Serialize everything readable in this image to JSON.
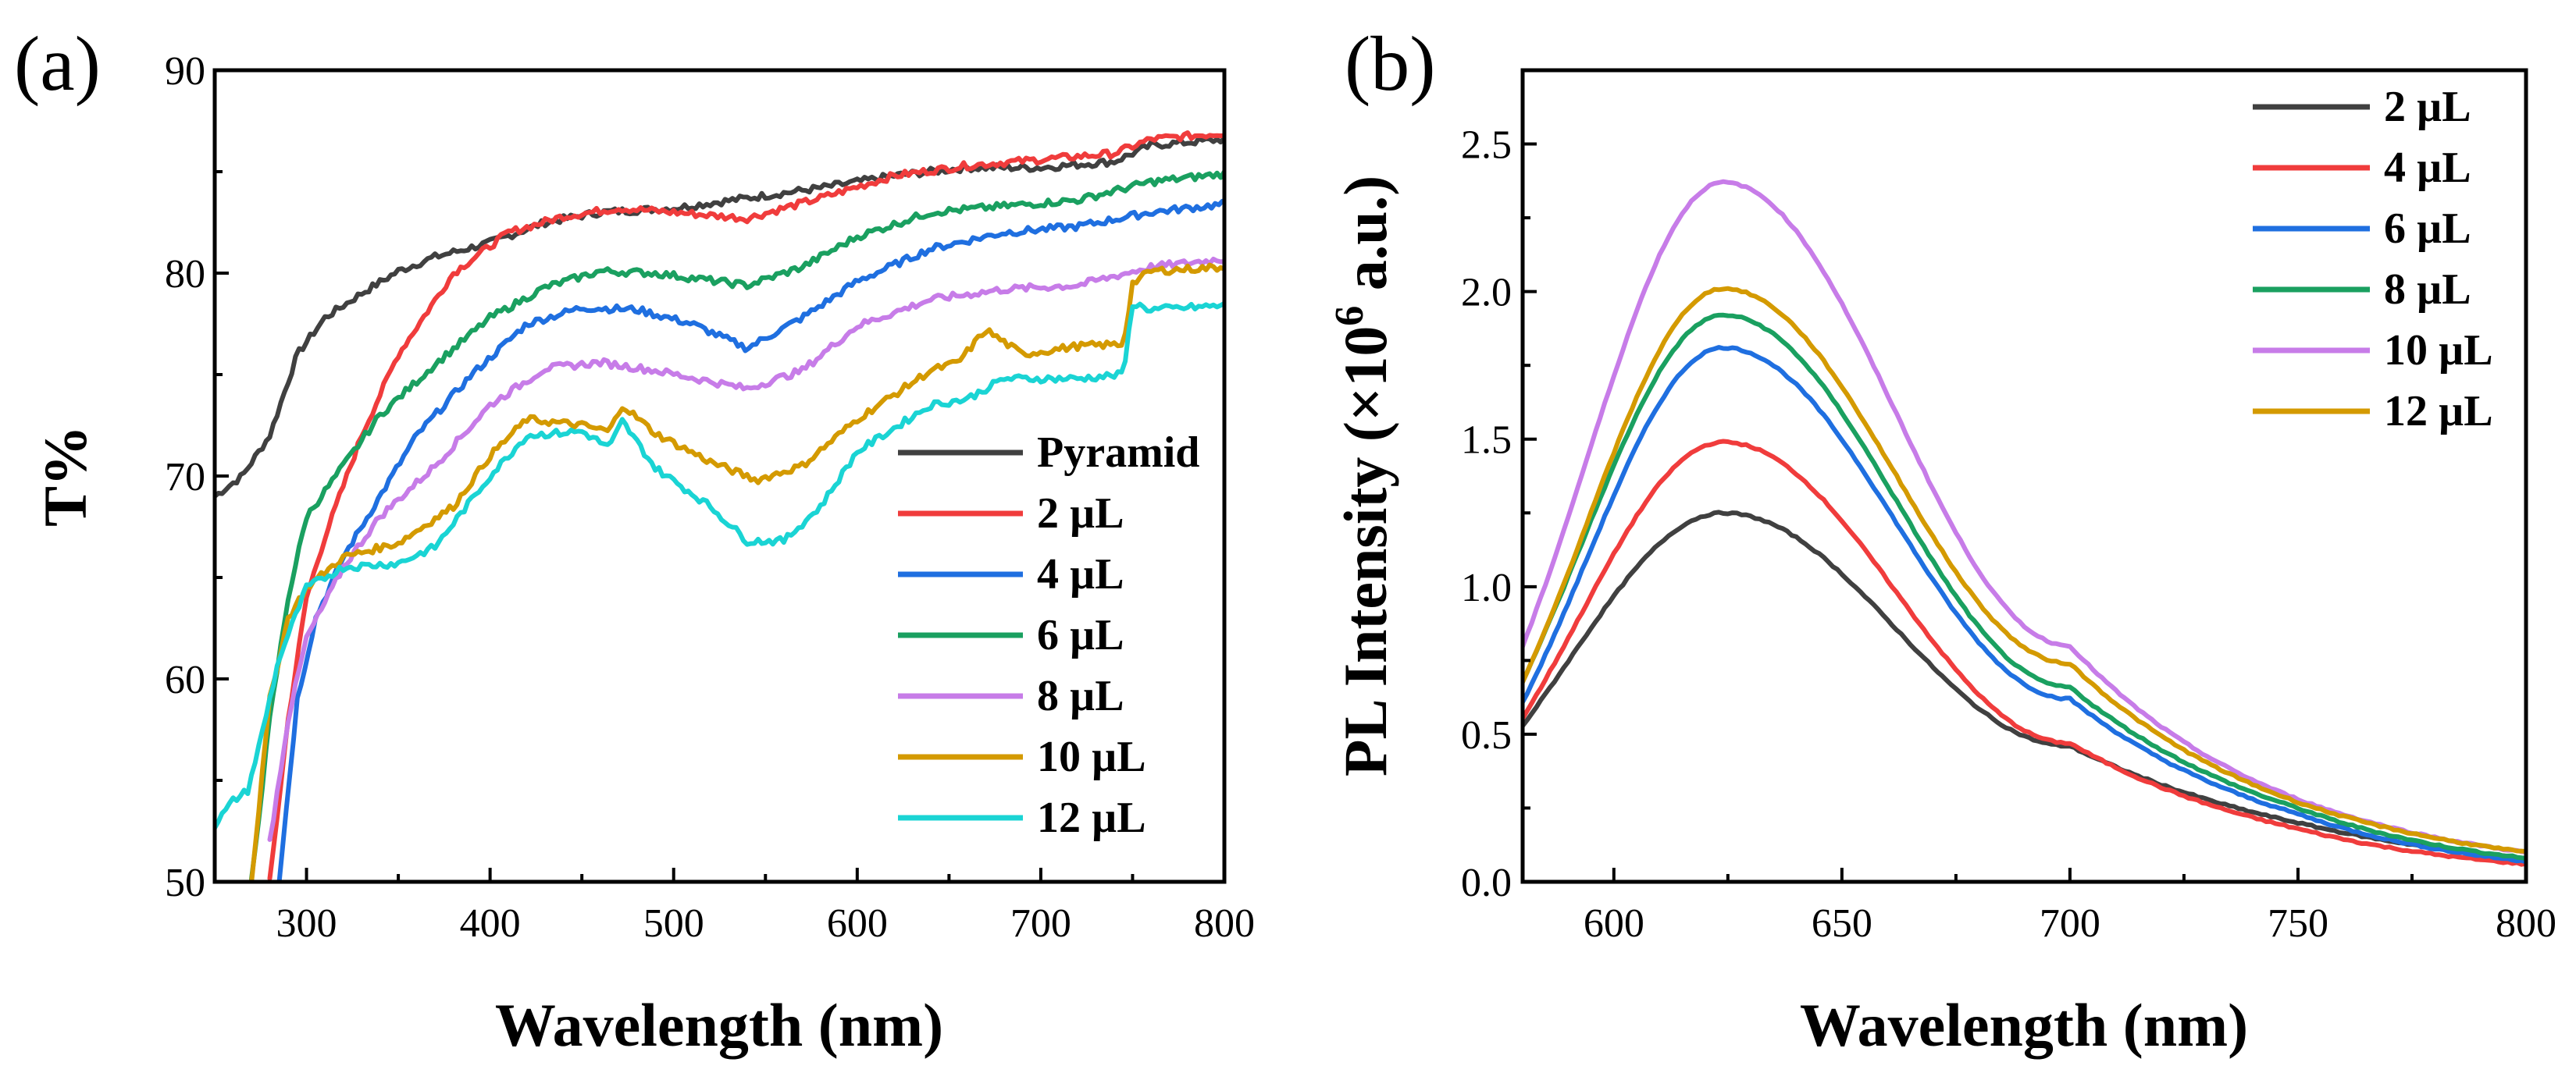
{
  "chart_data": [
    {
      "type": "line",
      "panel_label": "(a)",
      "title": "",
      "xlabel": "Wavelength (nm)",
      "ylabel": "T%",
      "xlim": [
        250,
        800
      ],
      "ylim": [
        50,
        90
      ],
      "xticks": [
        300,
        400,
        500,
        600,
        700,
        800
      ],
      "yticks": [
        50,
        60,
        70,
        80,
        90
      ],
      "legend": "bottom-right",
      "series": [
        {
          "name": "Pyramid",
          "color": "#404040",
          "x": [
            250,
            265,
            280,
            295,
            310,
            330,
            350,
            370,
            400,
            430,
            460,
            500,
            540,
            580,
            620,
            660,
            700,
            740,
            760,
            800
          ],
          "y": [
            69,
            70,
            72,
            76,
            77.8,
            79,
            80.1,
            80.8,
            81.5,
            82.5,
            83,
            83.2,
            83.7,
            84.2,
            84.8,
            85.2,
            85.2,
            85.5,
            86.3,
            86.6
          ]
        },
        {
          "name": "2 µL",
          "color": "#f03c3c",
          "x": [
            280,
            290,
            300,
            310,
            330,
            350,
            380,
            410,
            440,
            470,
            500,
            540,
            580,
            620,
            660,
            700,
            740,
            760,
            800
          ],
          "y": [
            50,
            58,
            64,
            67,
            72,
            76,
            80,
            82,
            82.8,
            83.2,
            83,
            82.7,
            83.7,
            84.8,
            85.3,
            85.6,
            85.9,
            86.6,
            86.9
          ]
        },
        {
          "name": "4 µL",
          "color": "#1f6fe0",
          "x": [
            285,
            295,
            305,
            320,
            340,
            360,
            390,
            420,
            450,
            480,
            510,
            540,
            570,
            600,
            640,
            680,
            720,
            760,
            800
          ],
          "y": [
            50,
            59,
            63,
            66,
            69,
            72,
            75,
            77.5,
            78.3,
            78.2,
            77.5,
            76.3,
            77.8,
            79.6,
            81.2,
            82,
            82.3,
            83,
            83.4
          ]
        },
        {
          "name": "6 µL",
          "color": "#1aa060",
          "x": [
            270,
            280,
            290,
            300,
            320,
            340,
            370,
            400,
            430,
            460,
            490,
            540,
            570,
            600,
            640,
            680,
            720,
            760,
            800
          ],
          "y": [
            50,
            58,
            64,
            68,
            70.5,
            73,
            75.5,
            77.8,
            79.3,
            80.1,
            80,
            79.4,
            80.3,
            81.8,
            83,
            83.3,
            83.6,
            84.5,
            84.9
          ]
        },
        {
          "name": "8 µL",
          "color": "#c77ce8",
          "x": [
            280,
            290,
            300,
            320,
            340,
            370,
            400,
            430,
            460,
            490,
            540,
            570,
            600,
            640,
            680,
            720,
            760,
            800
          ],
          "y": [
            52,
            58,
            62,
            65.5,
            68,
            70.5,
            73.5,
            75.3,
            75.6,
            75.2,
            74.3,
            75.2,
            77.4,
            78.7,
            79.2,
            79.4,
            80.3,
            80.7
          ]
        },
        {
          "name": "10 µL",
          "color": "#d49a00",
          "x": [
            270,
            280,
            290,
            300,
            320,
            350,
            380,
            400,
            420,
            450,
            465,
            472,
            490,
            520,
            545,
            570,
            600,
            640,
            655,
            670,
            690,
            720,
            745,
            750,
            760,
            800
          ],
          "y": [
            50,
            59,
            63,
            64.5,
            66,
            66.7,
            68.5,
            71,
            72.8,
            72.5,
            72.2,
            73.5,
            72.1,
            70.7,
            69.8,
            70.5,
            72.8,
            75.2,
            75.6,
            77.2,
            76,
            76.4,
            76.5,
            79.5,
            80.1,
            80.3
          ]
        },
        {
          "name": "12 µL",
          "color": "#1ad4d4",
          "x": [
            250,
            260,
            268,
            275,
            285,
            300,
            320,
            350,
            370,
            400,
            420,
            450,
            465,
            472,
            490,
            520,
            540,
            560,
            580,
            600,
            640,
            660,
            680,
            720,
            745,
            750,
            760,
            800
          ],
          "y": [
            52.8,
            54,
            54.5,
            57,
            61,
            64.5,
            65.5,
            65.7,
            66.5,
            70,
            72,
            72.2,
            71.4,
            72.7,
            70.4,
            68.5,
            66.8,
            66.8,
            68.5,
            71.2,
            73.5,
            73.8,
            74.8,
            74.8,
            75,
            78.5,
            78.2,
            78.4
          ]
        }
      ]
    },
    {
      "type": "line",
      "panel_label": "(b)",
      "title": "",
      "xlabel": "Wavelength (nm)",
      "ylabel_pre": "PL Intensity (×10",
      "ylabel_sup": "6",
      "ylabel_post": " a.u.)",
      "xlim": [
        580,
        800
      ],
      "ylim": [
        0,
        2.75
      ],
      "xticks": [
        600,
        650,
        700,
        750,
        800
      ],
      "yticks": [
        0.0,
        0.5,
        1.0,
        1.5,
        2.0,
        2.5
      ],
      "ytick_labels": [
        "0.0",
        "0.5",
        "1.0",
        "1.5",
        "2.0",
        "2.5"
      ],
      "legend": "top-right",
      "peak_nm": 624,
      "series": [
        {
          "name": "2 µL",
          "color": "#404040",
          "amplitude": 1.25,
          "width_left": 45,
          "tail_points": [
            [
              700,
              0.46
            ],
            [
              750,
              0.2
            ],
            [
              800,
              0.08
            ]
          ]
        },
        {
          "name": "4 µL",
          "color": "#f03c3c",
          "amplitude": 1.49,
          "width_left": 42,
          "tail_points": [
            [
              700,
              0.47
            ],
            [
              750,
              0.18
            ],
            [
              800,
              0.06
            ]
          ]
        },
        {
          "name": "6 µL",
          "color": "#1f6fe0",
          "amplitude": 1.81,
          "width_left": 40,
          "tail_points": [
            [
              700,
              0.62
            ],
            [
              750,
              0.23
            ],
            [
              800,
              0.07
            ]
          ]
        },
        {
          "name": "8 µL",
          "color": "#1aa060",
          "amplitude": 1.92,
          "width_left": 41,
          "tail_points": [
            [
              700,
              0.66
            ],
            [
              750,
              0.25
            ],
            [
              800,
              0.08
            ]
          ]
        },
        {
          "name": "10 µL",
          "color": "#c77ce8",
          "amplitude": 2.37,
          "width_left": 40,
          "tail_points": [
            [
              700,
              0.8
            ],
            [
              750,
              0.28
            ],
            [
              800,
              0.1
            ]
          ]
        },
        {
          "name": "12 µL",
          "color": "#d49a00",
          "amplitude": 2.01,
          "width_left": 40,
          "tail_points": [
            [
              700,
              0.74
            ],
            [
              750,
              0.27
            ],
            [
              800,
              0.1
            ]
          ]
        }
      ]
    }
  ]
}
